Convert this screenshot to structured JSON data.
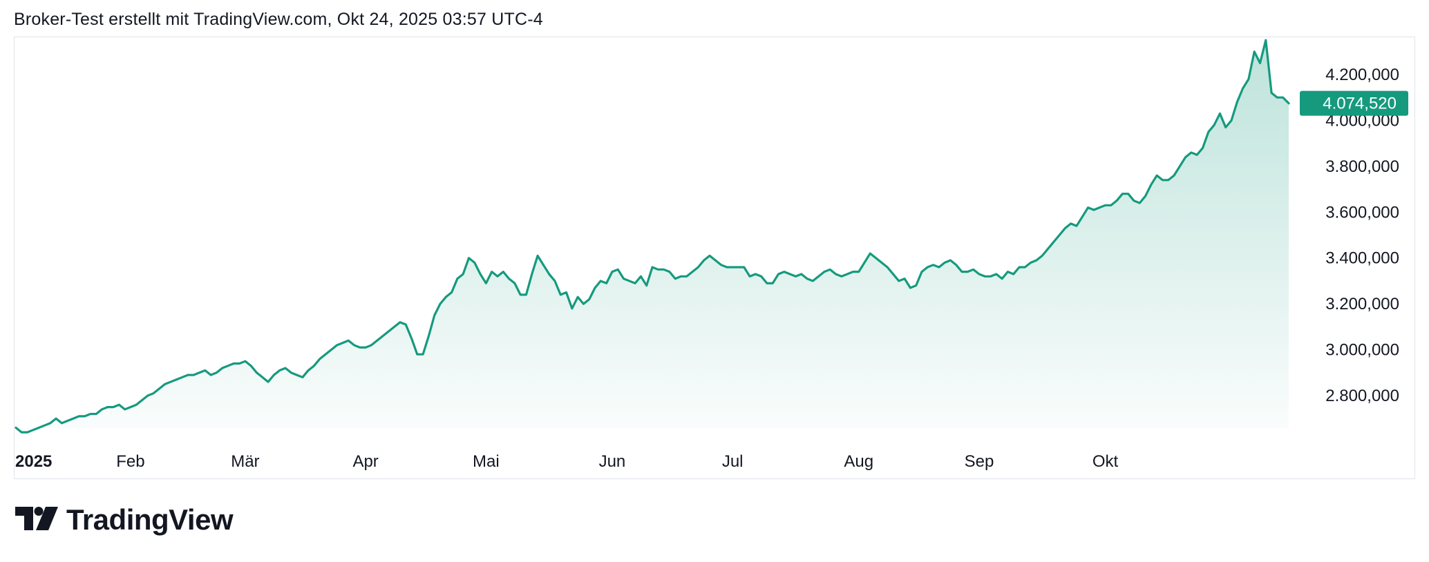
{
  "header": {
    "title": "Broker-Test erstellt mit TradingView.com, Okt 24, 2025 03:57 UTC-4"
  },
  "branding": {
    "logo_text": "TradingView",
    "logo_icon": "tradingview-logo-icon"
  },
  "colors": {
    "line": "#159A7E",
    "area_top": "#159A7E",
    "price_label_bg": "#159A7E",
    "text": "#131722",
    "border": "#e0e3eb"
  },
  "chart_data": {
    "type": "area",
    "series": [
      {
        "values": [
          2660000,
          2640000,
          2640000,
          2650000,
          2660000,
          2670000,
          2680000,
          2700000,
          2680000,
          2690000,
          2700000,
          2710000,
          2710000,
          2720000,
          2720000,
          2740000,
          2750000,
          2750000,
          2760000,
          2740000,
          2750000,
          2760000,
          2780000,
          2800000,
          2810000,
          2830000,
          2850000,
          2860000,
          2870000,
          2880000,
          2890000,
          2890000,
          2900000,
          2910000,
          2890000,
          2900000,
          2920000,
          2930000,
          2940000,
          2940000,
          2950000,
          2930000,
          2900000,
          2880000,
          2860000,
          2890000,
          2910000,
          2920000,
          2900000,
          2890000,
          2880000,
          2910000,
          2930000,
          2960000,
          2980000,
          3000000,
          3020000,
          3030000,
          3040000,
          3020000,
          3010000,
          3010000,
          3020000,
          3040000,
          3060000,
          3080000,
          3100000,
          3120000,
          3110000,
          3050000,
          2980000,
          2980000,
          3060000,
          3150000,
          3200000,
          3230000,
          3250000,
          3310000,
          3330000,
          3400000,
          3380000,
          3330000,
          3290000,
          3340000,
          3320000,
          3340000,
          3310000,
          3290000,
          3240000,
          3240000,
          3330000,
          3410000,
          3370000,
          3330000,
          3300000,
          3240000,
          3250000,
          3180000,
          3230000,
          3200000,
          3220000,
          3270000,
          3300000,
          3290000,
          3340000,
          3350000,
          3310000,
          3300000,
          3290000,
          3320000,
          3280000,
          3360000,
          3350000,
          3350000,
          3340000,
          3310000,
          3320000,
          3320000,
          3340000,
          3360000,
          3390000,
          3410000,
          3390000,
          3370000,
          3360000,
          3360000,
          3360000,
          3360000,
          3320000,
          3330000,
          3320000,
          3290000,
          3290000,
          3330000,
          3340000,
          3330000,
          3320000,
          3330000,
          3310000,
          3300000,
          3320000,
          3340000,
          3350000,
          3330000,
          3320000,
          3330000,
          3340000,
          3340000,
          3380000,
          3420000,
          3400000,
          3380000,
          3360000,
          3330000,
          3300000,
          3310000,
          3270000,
          3280000,
          3340000,
          3360000,
          3370000,
          3360000,
          3380000,
          3390000,
          3370000,
          3340000,
          3340000,
          3350000,
          3330000,
          3320000,
          3320000,
          3330000,
          3310000,
          3340000,
          3330000,
          3360000,
          3360000,
          3380000,
          3390000,
          3410000,
          3440000,
          3470000,
          3500000,
          3530000,
          3550000,
          3540000,
          3580000,
          3620000,
          3610000,
          3620000,
          3630000,
          3630000,
          3650000,
          3680000,
          3680000,
          3650000,
          3640000,
          3670000,
          3720000,
          3760000,
          3740000,
          3740000,
          3760000,
          3800000,
          3840000,
          3860000,
          3850000,
          3880000,
          3950000,
          3980000,
          4030000,
          3970000,
          4000000,
          4080000,
          4140000,
          4180000,
          4300000,
          4250000,
          4350000,
          4120000,
          4100000,
          4100000,
          4074520
        ]
      }
    ],
    "x_labels": [
      "2025",
      "Feb",
      "Mär",
      "Apr",
      "Mai",
      "Jun",
      "Jul",
      "Aug",
      "Sep",
      "Okt"
    ],
    "x_label_positions": [
      0,
      20,
      40,
      61,
      82,
      104,
      125,
      147,
      168,
      190
    ],
    "y_ticks": [
      "2.800,000",
      "3.000,000",
      "3.200,000",
      "3.400,000",
      "3.600,000",
      "3.800,000",
      "4.000,000",
      "4.200,000"
    ],
    "y_tick_values": [
      2800000,
      3000000,
      3200000,
      3400000,
      3600000,
      3800000,
      4000000,
      4200000
    ],
    "ylim": [
      2630000,
      4360000
    ],
    "last_price_label": "4.074,520",
    "last_price_value": 4074520,
    "grid": false,
    "axis_position": "right"
  }
}
